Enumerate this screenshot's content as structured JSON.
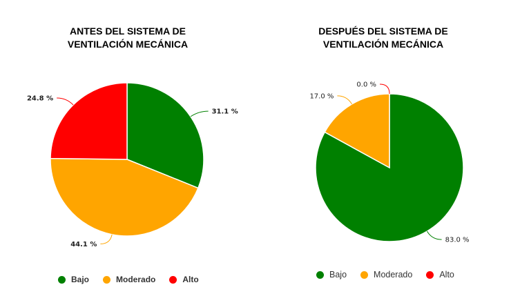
{
  "chart_data": [
    {
      "type": "pie",
      "title_lines": [
        "ANTES DEL SISTEMA DE",
        "VENTILACIÓN MECÁNICA"
      ],
      "categories": [
        "Bajo",
        "Moderado",
        "Alto"
      ],
      "values": [
        31.1,
        44.1,
        24.8
      ],
      "labels": [
        "31.1 %",
        "44.1 %",
        "24.8 %"
      ],
      "colors": [
        "#008000",
        "#FFA500",
        "#FF0000"
      ],
      "legend": "bottom"
    },
    {
      "type": "pie",
      "title_lines": [
        "DESPUÉS DEL SISTEMA DE",
        "VENTILACIÓN MECÁNICA"
      ],
      "categories": [
        "Bajo",
        "Moderado",
        "Alto"
      ],
      "values": [
        83.0,
        17.0,
        0.0
      ],
      "labels": [
        "83.0 %",
        "17.0 %",
        "0.0 %"
      ],
      "colors": [
        "#008000",
        "#FFA500",
        "#FF0000"
      ],
      "legend": "bottom"
    }
  ]
}
